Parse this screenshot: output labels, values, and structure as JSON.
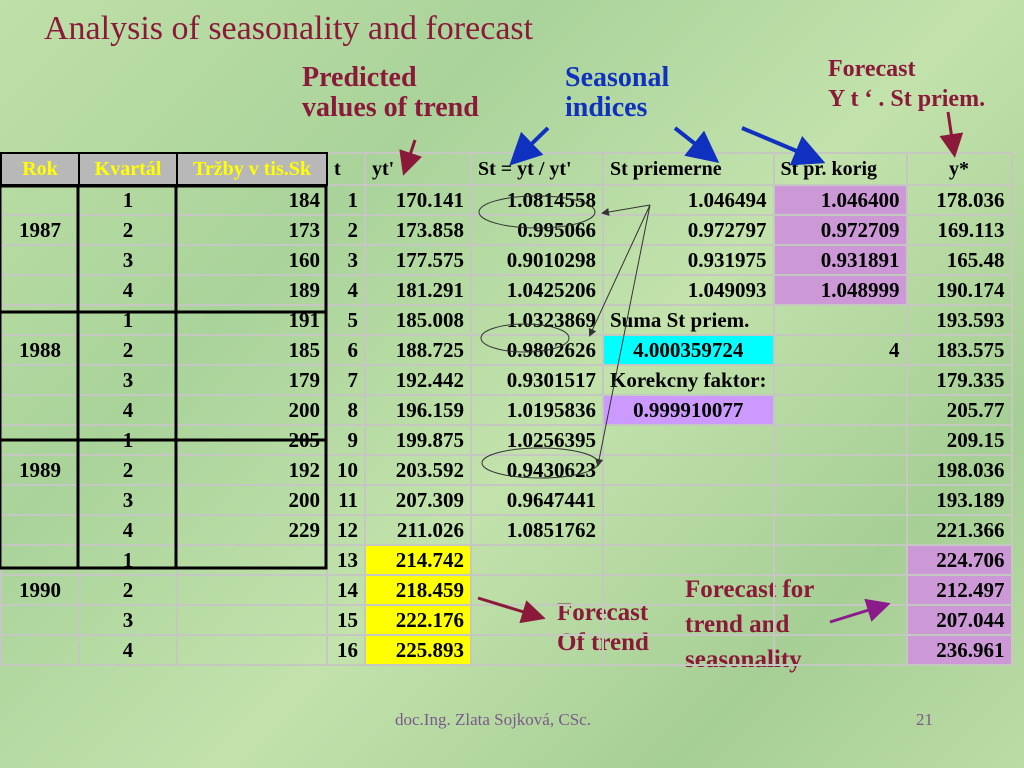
{
  "title": "Analysis of seasonality and forecast",
  "annotations": {
    "predicted": [
      "Predicted",
      "values of trend"
    ],
    "seasonal": [
      "Seasonal",
      "indices"
    ],
    "forecast_top": [
      "Forecast",
      "Y t ‘ . St priem."
    ],
    "forecast_trend": [
      "Forecast",
      "Of trend"
    ],
    "forecast_ts": [
      "Forecast for",
      "trend and",
      "seasonality"
    ]
  },
  "headers": [
    "Rok",
    "Kvartál",
    "Tržby v tis.Sk",
    "t",
    "yt'",
    "St = yt / yt'",
    "St priemerne",
    "St pr. korig",
    "y*"
  ],
  "rows": [
    [
      "",
      "1",
      "184",
      "1",
      "170.141",
      "1.0814558",
      "1.046494",
      "1.046400",
      "178.036"
    ],
    [
      "1987",
      "2",
      "173",
      "2",
      "173.858",
      "0.995066",
      "0.972797",
      "0.972709",
      "169.113"
    ],
    [
      "",
      "3",
      "160",
      "3",
      "177.575",
      "0.9010298",
      "0.931975",
      "0.931891",
      "165.48"
    ],
    [
      "",
      "4",
      "189",
      "4",
      "181.291",
      "1.0425206",
      "1.049093",
      "1.048999",
      "190.174"
    ],
    [
      "",
      "1",
      "191",
      "5",
      "185.008",
      "1.0323869",
      "Suma St priem.",
      "",
      "193.593"
    ],
    [
      "1988",
      "2",
      "185",
      "6",
      "188.725",
      "0.9802626",
      "4.000359724",
      "4",
      "183.575"
    ],
    [
      "",
      "3",
      "179",
      "7",
      "192.442",
      "0.9301517",
      "Korekcny faktor:",
      "",
      "179.335"
    ],
    [
      "",
      "4",
      "200",
      "8",
      "196.159",
      "1.0195836",
      "0.999910077",
      "",
      "205.77"
    ],
    [
      "",
      "1",
      "205",
      "9",
      "199.875",
      "1.0256395",
      "",
      "",
      "209.15"
    ],
    [
      "1989",
      "2",
      "192",
      "10",
      "203.592",
      "0.9430623",
      "",
      "",
      "198.036"
    ],
    [
      "",
      "3",
      "200",
      "11",
      "207.309",
      "0.9647441",
      "",
      "",
      "193.189"
    ],
    [
      "",
      "4",
      "229",
      "12",
      "211.026",
      "1.0851762",
      "",
      "",
      "221.366"
    ],
    [
      "",
      "1",
      "",
      "13",
      "214.742",
      "",
      "",
      "",
      "224.706"
    ],
    [
      "1990",
      "2",
      "",
      "14",
      "218.459",
      "",
      "",
      "",
      "212.497"
    ],
    [
      "",
      "3",
      "",
      "15",
      "222.176",
      "",
      "",
      "",
      "207.044"
    ],
    [
      "",
      "4",
      "",
      "16",
      "225.893",
      "",
      "",
      "",
      "236.961"
    ]
  ],
  "footer": "doc.Ing. Zlata Sojková, CSc.",
  "page_number": "21",
  "colors": {
    "title": "#8b1a3a",
    "seasonal": "#1030c0",
    "highlight_yellow": "#ffff00",
    "highlight_purple": "#cc99d6",
    "highlight_cyan": "#00ffff"
  }
}
